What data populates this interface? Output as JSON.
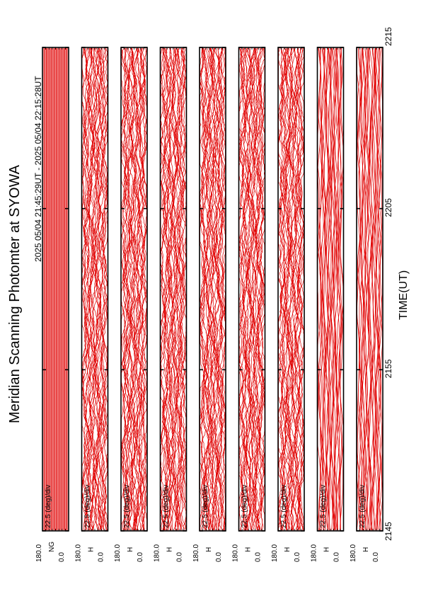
{
  "title": "Meridian Scanning Photomter at SYOWA",
  "subtitle": "2025 05/04 21:45:29UT - 2025 05/04 22:15:28UT",
  "xlabel": "TIME(UT)",
  "colors": {
    "trace": "#e00000",
    "frame": "#000000",
    "background": "#ffffff"
  },
  "chart_data": {
    "type": "line",
    "title": "Meridian Scanning Photomter at SYOWA",
    "subtitle": "2025 05/04 21:45:29UT - 2025 05/04 22:15:28UT",
    "xlabel": "TIME(UT)",
    "x_ticks": [
      "2145",
      "2155",
      "2205",
      "2215"
    ],
    "xlim": [
      "21:45",
      "22:15"
    ],
    "y_ticks": [
      "180.0",
      "0.0"
    ],
    "ylim": [
      0,
      180
    ],
    "scale_label": "22.5 (deg)/div",
    "grid": false,
    "panels": [
      {
        "label": "NG",
        "style": "flat"
      },
      {
        "label": "H",
        "style": "active"
      },
      {
        "label": "H",
        "style": "active"
      },
      {
        "label": "H",
        "style": "active"
      },
      {
        "label": "H",
        "style": "active"
      },
      {
        "label": "H",
        "style": "active"
      },
      {
        "label": "H",
        "style": "active"
      },
      {
        "label": "H",
        "style": "smooth"
      },
      {
        "label": "H",
        "style": "smooth"
      }
    ]
  }
}
